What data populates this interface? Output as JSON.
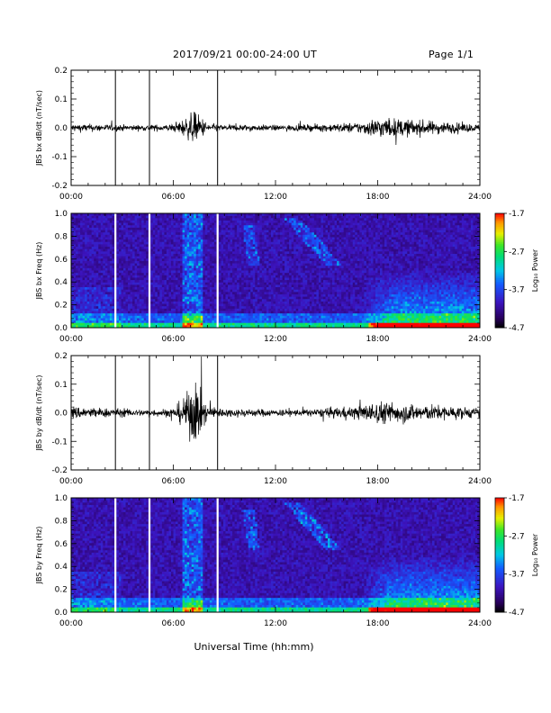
{
  "header": {
    "date_range": "2017/09/21  00:00-24:00 UT",
    "page": "Page 1/1"
  },
  "xaxis": {
    "label": "Universal Time (hh:mm)",
    "ticks": [
      "00:00",
      "06:00",
      "12:00",
      "18:00",
      "24:00"
    ]
  },
  "colorbar": {
    "label": "Log₁₀ Power",
    "ticks": [
      "-1.7",
      "-2.7",
      "-3.7",
      "-4.7"
    ],
    "range": [
      -4.7,
      -1.7
    ]
  },
  "chart_data": [
    {
      "type": "line",
      "ylabel": "JBS bx dB/dt (nT/sec)",
      "xlim": [
        0,
        24
      ],
      "ylim": [
        -0.2,
        0.2
      ],
      "yticks": [
        "0.2",
        "0.1",
        "0.0",
        "-0.1",
        "-0.2"
      ],
      "gap_markers_hours": [
        2.6,
        4.6,
        8.6
      ],
      "envelope": {
        "x_hours": [
          0,
          2,
          4,
          6,
          6.8,
          7.2,
          7.6,
          8,
          9,
          10,
          12,
          14,
          16,
          17,
          18,
          19,
          20,
          21,
          22,
          24
        ],
        "amplitude": [
          0.018,
          0.015,
          0.012,
          0.015,
          0.045,
          0.07,
          0.05,
          0.02,
          0.012,
          0.014,
          0.012,
          0.014,
          0.02,
          0.025,
          0.045,
          0.04,
          0.035,
          0.03,
          0.025,
          0.015
        ]
      }
    },
    {
      "type": "heatmap",
      "ylabel": "JBS bx Freq (Hz)",
      "xlim": [
        0,
        24
      ],
      "ylim": [
        0.0,
        1.0
      ],
      "yticks": [
        "1.0",
        "0.8",
        "0.6",
        "0.4",
        "0.2",
        "0.0"
      ],
      "zlim": [
        -4.7,
        -1.7
      ],
      "gap_markers_hours": [
        2.6,
        4.6,
        8.6
      ]
    },
    {
      "type": "line",
      "ylabel": "JBS by dB/dt (nT/sec)",
      "xlim": [
        0,
        24
      ],
      "ylim": [
        -0.2,
        0.2
      ],
      "yticks": [
        "0.2",
        "0.1",
        "0.0",
        "-0.1",
        "-0.2"
      ],
      "gap_markers_hours": [
        2.6,
        4.6,
        8.6
      ],
      "envelope": {
        "x_hours": [
          0,
          1,
          2,
          3,
          4,
          5,
          6,
          6.8,
          7.2,
          7.6,
          8,
          9,
          10,
          12,
          14,
          16,
          17,
          18,
          19,
          20,
          22,
          24
        ],
        "amplitude": [
          0.03,
          0.025,
          0.02,
          0.018,
          0.015,
          0.015,
          0.02,
          0.08,
          0.15,
          0.09,
          0.03,
          0.018,
          0.018,
          0.015,
          0.015,
          0.025,
          0.03,
          0.05,
          0.045,
          0.04,
          0.03,
          0.02
        ]
      }
    },
    {
      "type": "heatmap",
      "ylabel": "JBS by Freq (Hz)",
      "xlim": [
        0,
        24
      ],
      "ylim": [
        0.0,
        1.0
      ],
      "yticks": [
        "1.0",
        "0.8",
        "0.6",
        "0.4",
        "0.2",
        "0.0"
      ],
      "zlim": [
        -4.7,
        -1.7
      ],
      "gap_markers_hours": [
        2.6,
        4.6,
        8.6
      ]
    }
  ]
}
